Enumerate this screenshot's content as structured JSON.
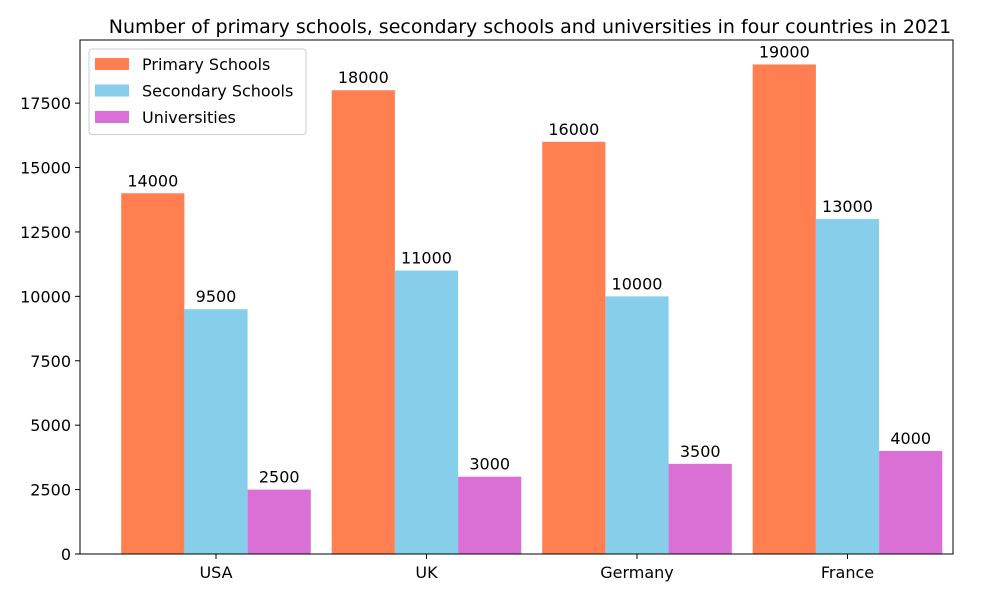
{
  "chart_data": {
    "type": "bar",
    "title": "Number of primary schools, secondary schools and universities in four countries in 2021",
    "xlabel": "",
    "ylabel": "",
    "categories": [
      "USA",
      "UK",
      "Germany",
      "France"
    ],
    "series": [
      {
        "name": "Primary Schools",
        "values": [
          14000,
          18000,
          16000,
          19000
        ],
        "color": "#ff7f50"
      },
      {
        "name": "Secondary Schools",
        "values": [
          9500,
          11000,
          10000,
          13000
        ],
        "color": "#87ceeb"
      },
      {
        "name": "Universities",
        "values": [
          2500,
          3000,
          3500,
          4000
        ],
        "color": "#da70d6"
      }
    ],
    "ylim": [
      0,
      19950
    ],
    "yticks": [
      0,
      2500,
      5000,
      7500,
      10000,
      12500,
      15000,
      17500
    ],
    "grid": false,
    "legend_position": "upper-left",
    "data_labels": true
  }
}
